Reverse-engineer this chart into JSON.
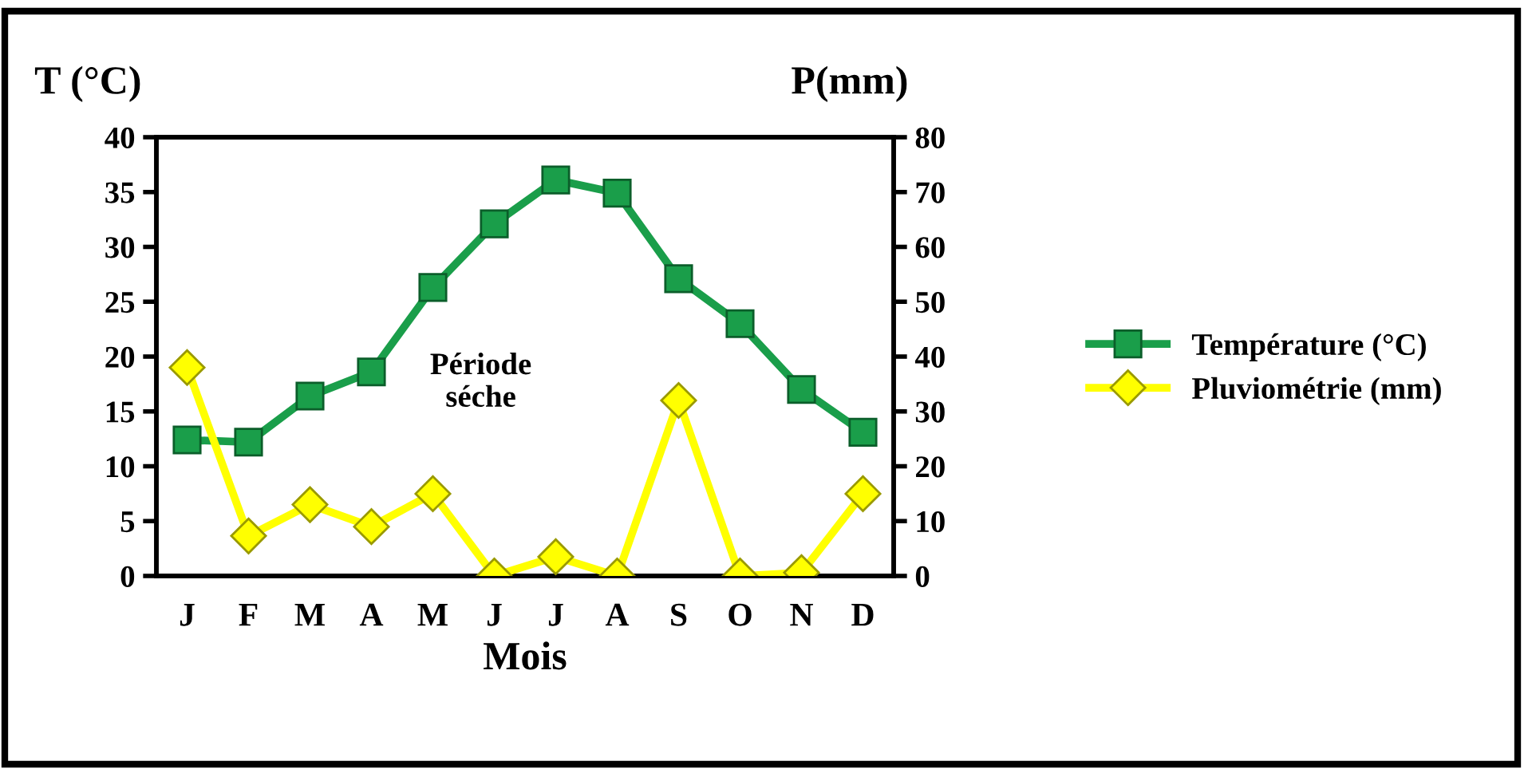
{
  "chart_data": {
    "type": "line",
    "xlabel": "Mois",
    "ylabel": "T (°C)",
    "y2label": "P(mm)",
    "categories": [
      "J",
      "F",
      "M",
      "A",
      "M",
      "J",
      "J",
      "A",
      "S",
      "O",
      "N",
      "D"
    ],
    "series": [
      {
        "name": "Température (°C)",
        "color": "#1a9e4a",
        "marker": "square",
        "values": [
          12.4,
          12.2,
          16.4,
          18.6,
          26.3,
          32.1,
          36.1,
          34.9,
          27.1,
          23.0,
          17.0,
          13.1
        ]
      },
      {
        "name": "Pluviométrie (mm)",
        "color": "#ffff00",
        "marker": "diamond",
        "axis": "y2",
        "values": [
          38,
          7.3,
          13,
          9,
          15,
          0,
          3.5,
          0,
          32,
          0,
          0.6,
          15
        ]
      }
    ],
    "ylim": [
      0,
      40
    ],
    "yticks": [
      0,
      5,
      10,
      15,
      20,
      25,
      30,
      35,
      40
    ],
    "y2lim": [
      0,
      80
    ],
    "y2ticks": [
      0,
      10,
      20,
      30,
      40,
      50,
      60,
      70,
      80
    ],
    "annotations": [
      "Période\nséche"
    ],
    "legend": "right",
    "grid": false
  }
}
